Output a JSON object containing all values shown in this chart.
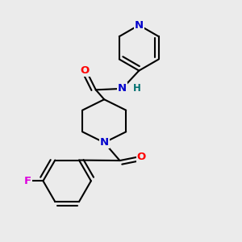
{
  "bg_color": "#ebebeb",
  "atom_colors": {
    "N": "#0000cc",
    "O": "#ff0000",
    "F": "#dd00dd",
    "H": "#007070",
    "C": "#000000"
  },
  "bond_color": "#000000",
  "bond_width": 1.5,
  "fig_width": 3.0,
  "fig_height": 3.0,
  "dpi": 100
}
